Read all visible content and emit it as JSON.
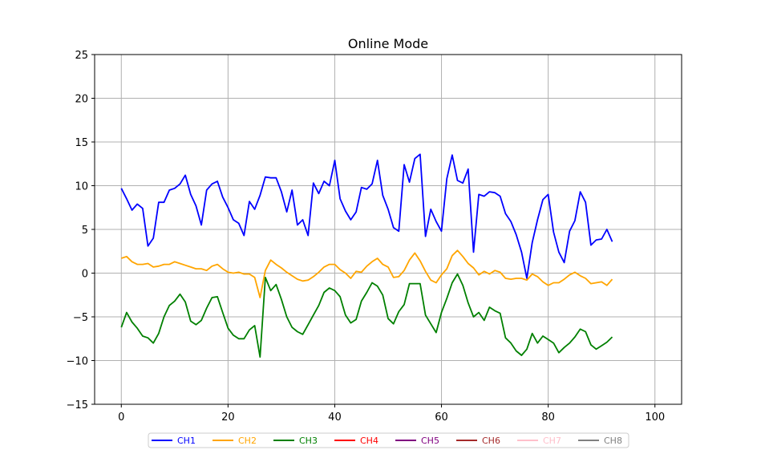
{
  "chart_data": {
    "type": "line",
    "title": "Online Mode",
    "xlabel": "",
    "ylabel": "",
    "xlim": [
      -5,
      105
    ],
    "ylim": [
      -15,
      25
    ],
    "x_ticks": [
      0,
      20,
      40,
      60,
      80,
      100
    ],
    "y_ticks": [
      -15,
      -10,
      -5,
      0,
      5,
      10,
      15,
      20,
      25
    ],
    "x_tick_labels": [
      "0",
      "20",
      "40",
      "60",
      "80",
      "100"
    ],
    "y_tick_labels": [
      "−15",
      "−10",
      "−5",
      "0",
      "5",
      "10",
      "15",
      "20",
      "25"
    ],
    "grid": true,
    "legend_position": "bottom-center",
    "series": [
      {
        "name": "CH1",
        "color": "#0000ff",
        "values": [
          9.7,
          8.5,
          7.2,
          7.9,
          7.4,
          3.1,
          4.0,
          8.1,
          8.1,
          9.5,
          9.7,
          10.2,
          11.2,
          9.0,
          7.7,
          5.5,
          9.5,
          10.2,
          10.5,
          8.7,
          7.5,
          6.1,
          5.7,
          4.3,
          8.2,
          7.3,
          8.9,
          11.0,
          10.9,
          10.9,
          9.3,
          7.0,
          9.5,
          5.5,
          6.1,
          4.3,
          10.3,
          9.1,
          10.5,
          10.0,
          12.9,
          8.5,
          7.1,
          6.1,
          7.0,
          9.8,
          9.6,
          10.2,
          12.9,
          8.9,
          7.3,
          5.2,
          4.8,
          12.4,
          10.4,
          13.1,
          13.6,
          4.2,
          7.3,
          5.9,
          4.8,
          10.8,
          13.5,
          10.6,
          10.3,
          11.9,
          2.4,
          9.0,
          8.8,
          9.3,
          9.2,
          8.8,
          6.8,
          5.9,
          4.4,
          2.4,
          -0.6,
          3.5,
          6.1,
          8.4,
          9.0,
          4.7,
          2.4,
          1.2,
          4.8,
          6.0,
          9.3,
          8.1,
          3.2,
          3.8,
          3.9,
          5.0,
          3.6
        ]
      },
      {
        "name": "CH2",
        "color": "#ffa500",
        "values": [
          1.7,
          1.9,
          1.3,
          1.0,
          1.0,
          1.1,
          0.7,
          0.8,
          1.0,
          1.0,
          1.3,
          1.1,
          0.9,
          0.7,
          0.5,
          0.5,
          0.3,
          0.8,
          1.0,
          0.5,
          0.1,
          0.0,
          0.1,
          -0.1,
          -0.1,
          -0.5,
          -2.8,
          0.3,
          1.5,
          1.0,
          0.6,
          0.1,
          -0.3,
          -0.7,
          -0.9,
          -0.8,
          -0.4,
          0.1,
          0.7,
          1.0,
          1.0,
          0.4,
          0.0,
          -0.6,
          0.2,
          0.1,
          0.8,
          1.3,
          1.7,
          1.0,
          0.7,
          -0.5,
          -0.4,
          0.3,
          1.5,
          2.3,
          1.4,
          0.2,
          -0.8,
          -1.1,
          -0.2,
          0.5,
          2.0,
          2.6,
          1.9,
          1.1,
          0.6,
          -0.2,
          0.2,
          -0.1,
          0.3,
          0.1,
          -0.6,
          -0.7,
          -0.6,
          -0.6,
          -0.8,
          -0.1,
          -0.4,
          -1.0,
          -1.4,
          -1.1,
          -1.1,
          -0.7,
          -0.2,
          0.1,
          -0.3,
          -0.6,
          -1.2,
          -1.1,
          -1.0,
          -1.4,
          -0.7
        ]
      },
      {
        "name": "CH3",
        "color": "#008000",
        "values": [
          -6.2,
          -4.5,
          -5.6,
          -6.3,
          -7.2,
          -7.4,
          -8.0,
          -6.9,
          -5.0,
          -3.7,
          -3.2,
          -2.4,
          -3.3,
          -5.5,
          -5.9,
          -5.4,
          -4.0,
          -2.8,
          -2.7,
          -4.5,
          -6.3,
          -7.1,
          -7.5,
          -7.5,
          -6.5,
          -6.0,
          -9.6,
          -0.5,
          -2.0,
          -1.3,
          -3.0,
          -5.0,
          -6.2,
          -6.7,
          -7.0,
          -5.9,
          -4.8,
          -3.7,
          -2.2,
          -1.7,
          -2.0,
          -2.7,
          -4.8,
          -5.7,
          -5.3,
          -3.2,
          -2.2,
          -1.1,
          -1.5,
          -2.5,
          -5.2,
          -5.8,
          -4.4,
          -3.6,
          -1.2,
          -1.2,
          -1.2,
          -4.8,
          -5.8,
          -6.8,
          -4.5,
          -2.9,
          -1.1,
          -0.1,
          -1.4,
          -3.4,
          -5.0,
          -4.5,
          -5.4,
          -3.9,
          -4.3,
          -4.6,
          -7.4,
          -8.0,
          -8.9,
          -9.4,
          -8.7,
          -6.9,
          -8.0,
          -7.2,
          -7.6,
          -8.0,
          -9.1,
          -8.5,
          -8.0,
          -7.3,
          -6.4,
          -6.7,
          -8.2,
          -8.7,
          -8.3,
          -7.9,
          -7.3
        ]
      },
      {
        "name": "CH4",
        "color": "#ff0000",
        "values": []
      },
      {
        "name": "CH5",
        "color": "#800080",
        "values": []
      },
      {
        "name": "CH6",
        "color": "#a52a2a",
        "values": []
      },
      {
        "name": "CH7",
        "color": "#ffc0cb",
        "values": []
      },
      {
        "name": "CH8",
        "color": "#808080",
        "values": []
      }
    ]
  }
}
